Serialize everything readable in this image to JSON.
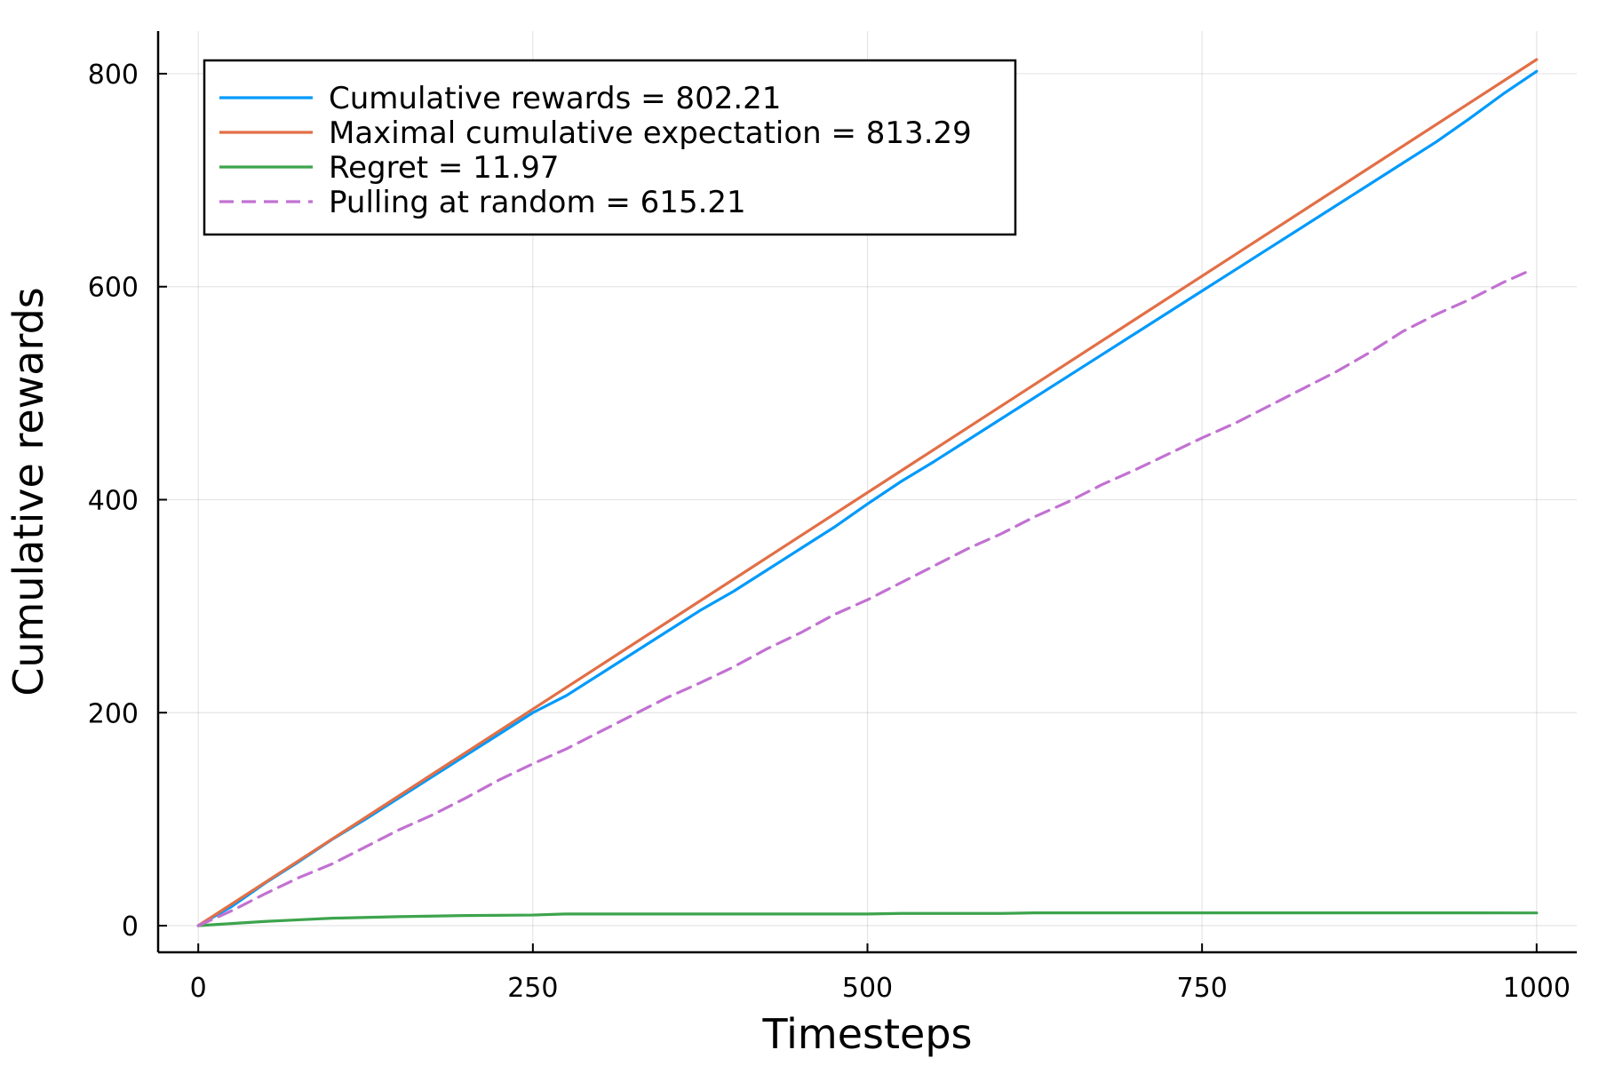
{
  "chart_data": {
    "type": "line",
    "title": "",
    "xlabel": "Timesteps",
    "ylabel": "Cumulative rewards",
    "xlim": [
      -30,
      1030
    ],
    "ylim": [
      -25,
      840
    ],
    "xticks": [
      0,
      250,
      500,
      750,
      1000
    ],
    "xtick_labels": [
      "0",
      "250",
      "500",
      "750",
      "1000"
    ],
    "yticks": [
      0,
      200,
      400,
      600,
      800
    ],
    "ytick_labels": [
      "0",
      "200",
      "400",
      "600",
      "800"
    ],
    "grid": true,
    "legend_position": "top-left",
    "series": [
      {
        "name": "Cumulative rewards = 802.21",
        "color": "#009AFA",
        "dash": "solid",
        "x": [
          0,
          25,
          50,
          75,
          100,
          125,
          150,
          175,
          200,
          225,
          250,
          275,
          300,
          325,
          350,
          375,
          400,
          425,
          450,
          475,
          500,
          525,
          550,
          575,
          600,
          625,
          650,
          675,
          700,
          725,
          750,
          775,
          800,
          825,
          850,
          875,
          900,
          925,
          950,
          975,
          1000
        ],
        "y": [
          0,
          18,
          40,
          60,
          81,
          100,
          120,
          140,
          160,
          180,
          200,
          216,
          236,
          256,
          276,
          296,
          314,
          334,
          354,
          374,
          396,
          417,
          436,
          456,
          476,
          496,
          516,
          536,
          556,
          576,
          596,
          616,
          636,
          656,
          676,
          696,
          716,
          736,
          758,
          781,
          802.21
        ]
      },
      {
        "name": "Maximal cumulative expectation = 813.29",
        "color": "#E26F46",
        "dash": "solid",
        "x": [
          0,
          1000
        ],
        "y": [
          0,
          813.29
        ]
      },
      {
        "name": "Regret = 11.97",
        "color": "#3DA44D",
        "dash": "solid",
        "x": [
          0,
          25,
          50,
          75,
          100,
          150,
          200,
          250,
          275,
          300,
          400,
          500,
          525,
          600,
          625,
          700,
          800,
          900,
          1000
        ],
        "y": [
          0,
          2,
          4,
          5.5,
          7,
          8.5,
          9.5,
          10,
          11,
          11,
          11,
          11,
          11.5,
          11.5,
          12,
          12,
          12,
          12,
          11.97
        ]
      },
      {
        "name": "Pulling at random = 615.21",
        "color": "#C271D2",
        "dash": "dashed",
        "x": [
          0,
          25,
          50,
          75,
          100,
          125,
          150,
          175,
          200,
          225,
          250,
          275,
          300,
          325,
          350,
          375,
          400,
          425,
          450,
          475,
          500,
          525,
          550,
          575,
          600,
          625,
          650,
          675,
          700,
          725,
          750,
          775,
          800,
          825,
          850,
          875,
          900,
          925,
          950,
          975,
          995
        ],
        "y": [
          0,
          14,
          30,
          45,
          58,
          74,
          90,
          104,
          120,
          137,
          152,
          166,
          182,
          198,
          214,
          228,
          243,
          260,
          275,
          292,
          306,
          322,
          338,
          354,
          368,
          384,
          398,
          414,
          428,
          443,
          458,
          472,
          488,
          504,
          520,
          538,
          558,
          574,
          588,
          604,
          615.21
        ]
      }
    ]
  }
}
